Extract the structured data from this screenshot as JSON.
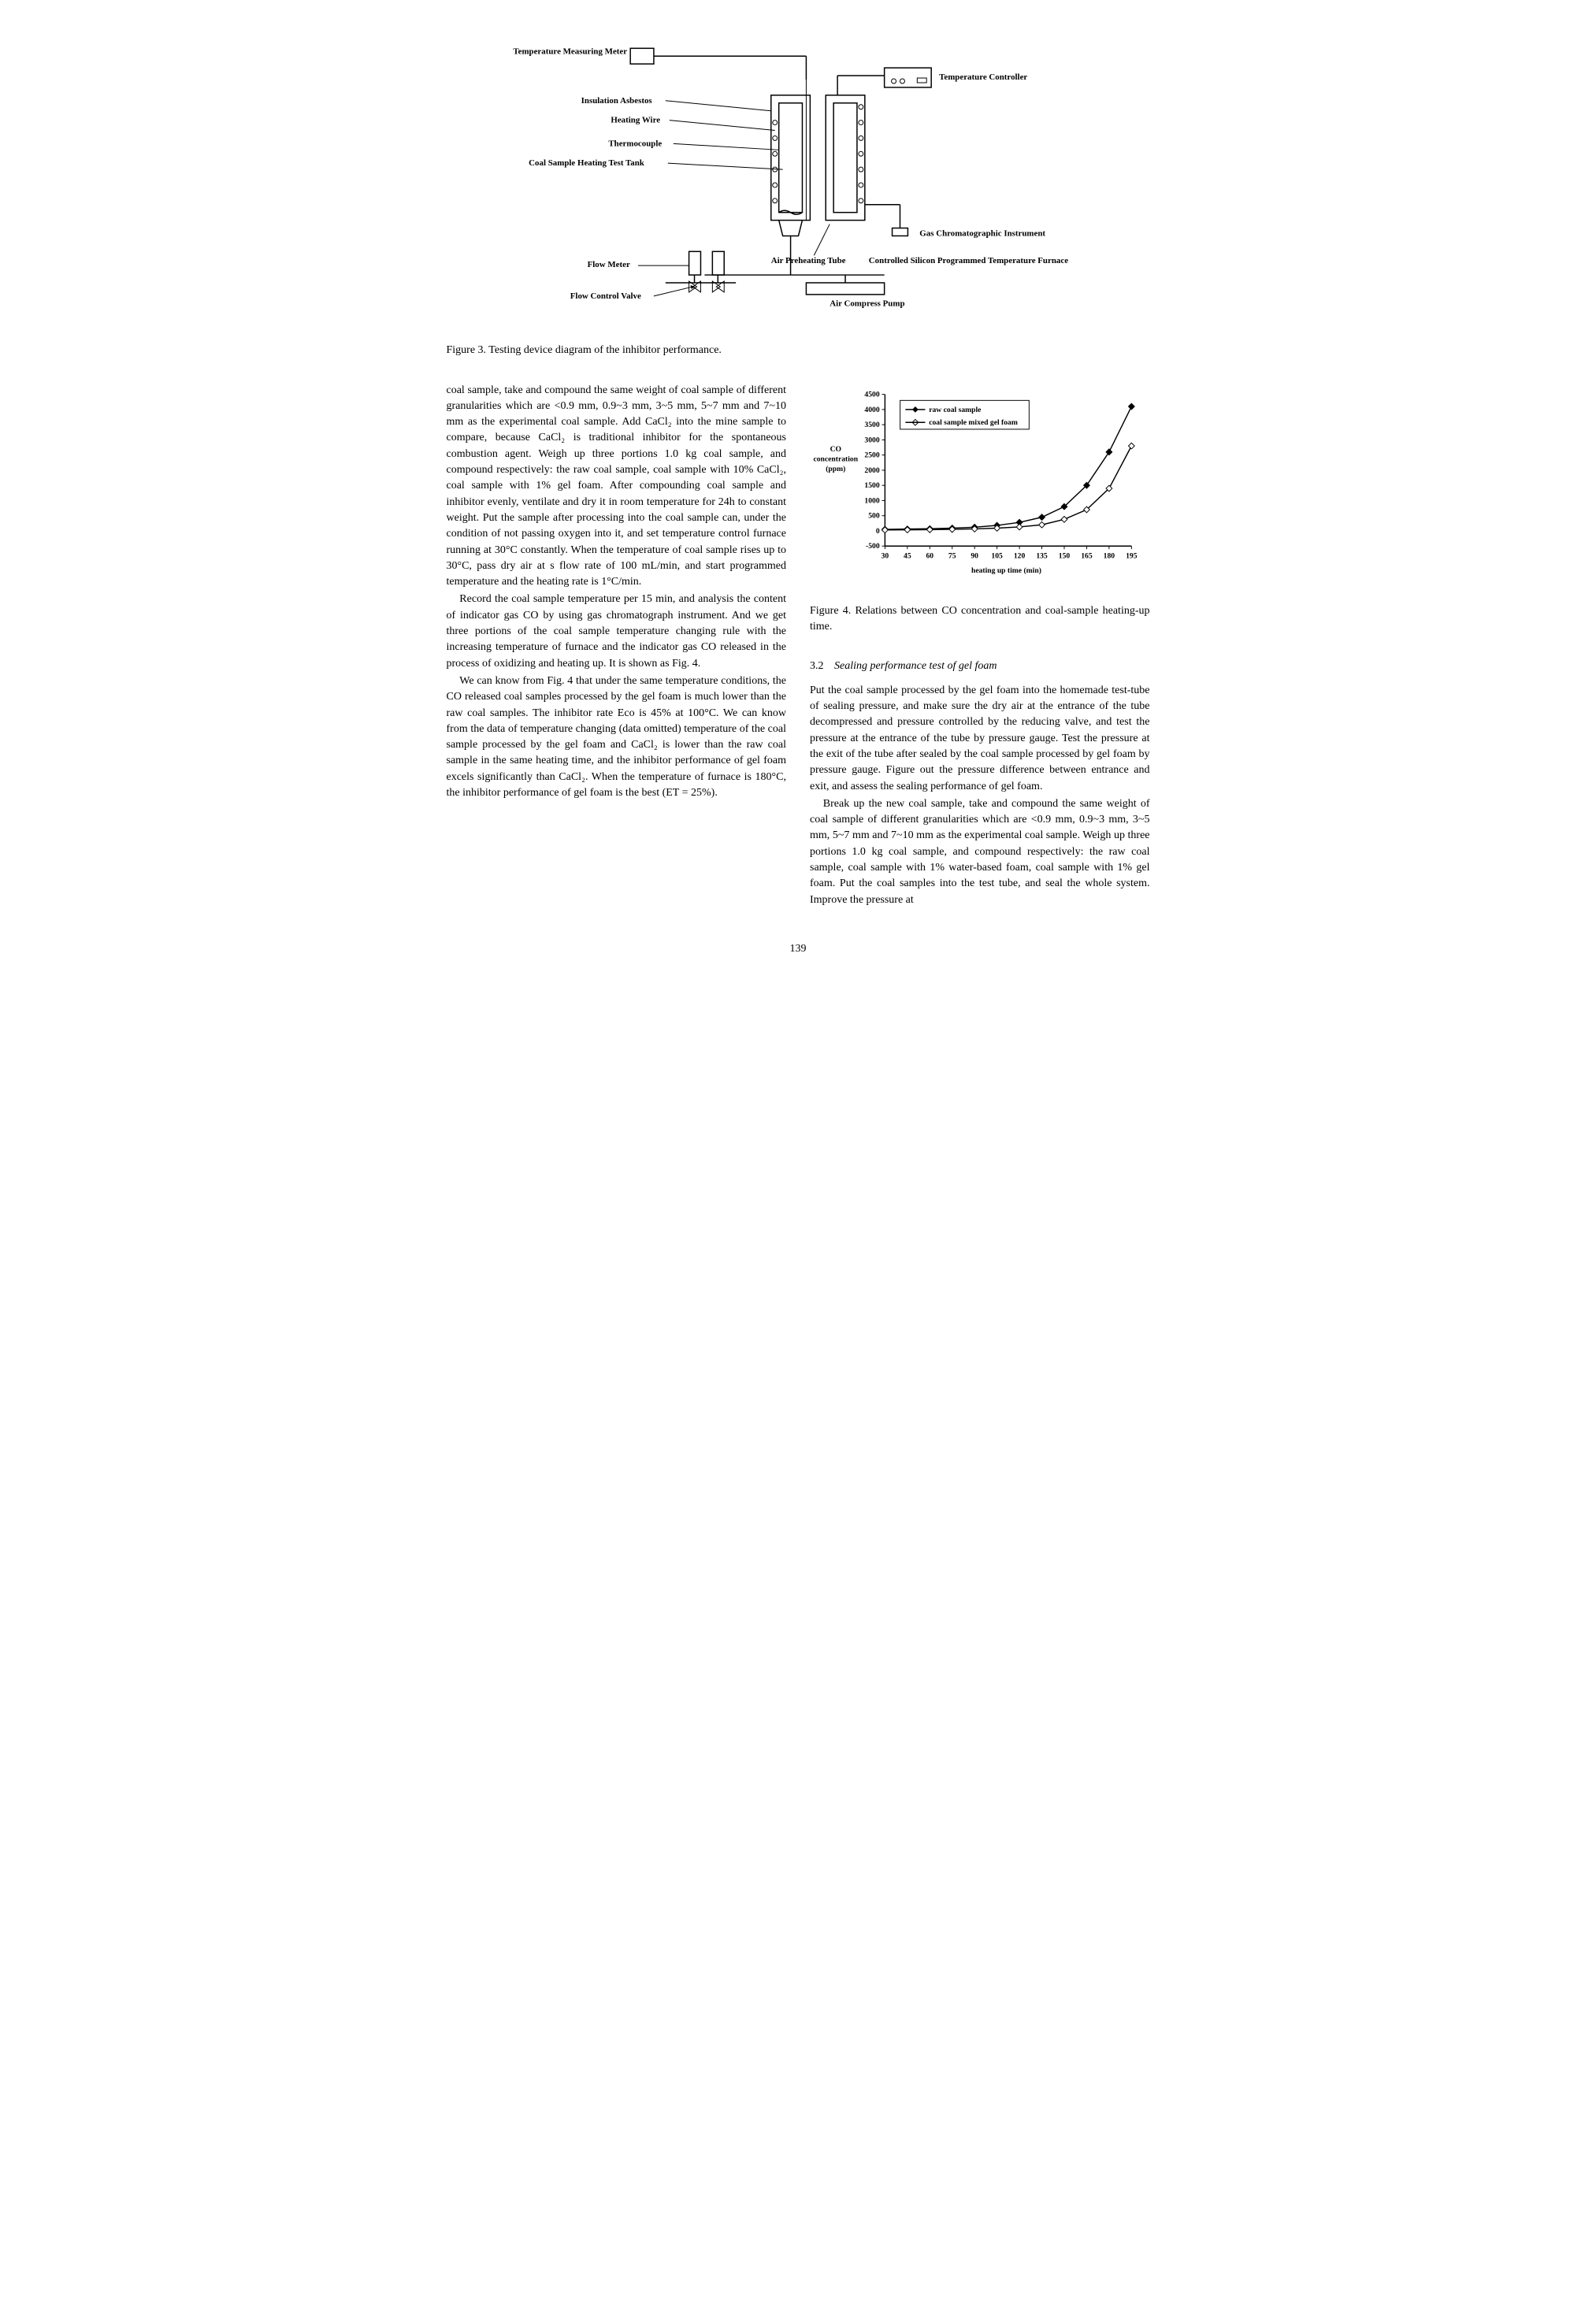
{
  "figure3": {
    "caption": "Figure 3.   Testing device diagram of the inhibitor performance.",
    "labels": {
      "tempMeasuring": "Temperature Measuring Meter",
      "tempController": "Temperature Controller",
      "insulationAsbestos": "Insulation Asbestos",
      "heatingWire": "Heating Wire",
      "thermocouple": "Thermocouple",
      "coalSampleTank": "Coal Sample Heating Test Tank",
      "gasInstrument": "Gas Chromatographic Instrument",
      "airPreheatTube": "Air Preheating Tube",
      "controlledFurnace": "Controlled Silicon Programmed Temperature Furnace",
      "flowMeter": "Flow Meter",
      "airCompressPump": "Air Compress Pump",
      "flowControlValve": "Flow Control Valve"
    }
  },
  "leftColumn": {
    "para1": "coal sample, take and compound the same weight of coal sample of different granularities which are <0.9 mm, 0.9~3 mm, 3~5 mm, 5~7 mm and 7~10 mm as the experimental coal sample. Add CaCl₂ into the mine sample to compare, because CaCl₂ is traditional inhibitor for the spontaneous combustion agent. Weigh up three portions 1.0 kg coal sample, and compound respectively: the raw coal sample, coal sample with 10% CaCl₂, coal sample with 1% gel foam. After compounding coal sample and inhibitor evenly, ventilate and dry it in room temperature for 24h to constant weight. Put the sample after processing into the coal sample can, under the condition of not passing oxygen into it, and set temperature control furnace running at 30°C constantly. When the temperature of coal sample rises up to 30°C, pass dry air at s flow rate of 100 mL/min, and start programmed temperature and the heating rate is 1°C/min.",
    "para2": "Record the coal sample temperature per 15 min, and analysis the content of indicator gas CO by using gas chromatograph instrument. And we get three portions of the coal sample temperature changing rule with the increasing temperature of furnace and the indicator gas CO released in the process of oxidizing and heating up. It is shown as Fig. 4.",
    "para3": "We can know from Fig. 4 that under the same temperature conditions, the CO released coal samples processed by the gel foam is much lower than the raw coal samples. The inhibitor rate Eco is 45% at 100°C. We can know from the data of temperature changing (data omitted) temperature of the coal sample processed by the gel foam and CaCl₂ is lower than the raw coal sample in the same heating time, and the inhibitor performance of gel foam excels significantly than CaCl₂. When the temperature of furnace is 180°C, the inhibitor performance of gel foam is the best (ET = 25%)."
  },
  "figure4": {
    "caption": "Figure 4.   Relations between CO concentration and coal-sample heating-up time.",
    "yLabel1": "CO",
    "yLabel2": "concentration",
    "yLabel3": "(ppm)",
    "xLabel": "heating up time (min)",
    "legend1": "raw coal sample",
    "legend2": "coal sample mixed gel foam",
    "yTicks": [
      -500,
      0,
      500,
      1000,
      1500,
      2000,
      2500,
      3000,
      3500,
      4000,
      4500
    ],
    "xTicks": [
      30,
      45,
      60,
      75,
      90,
      105,
      120,
      135,
      150,
      165,
      180,
      195
    ],
    "series1": {
      "x": [
        30,
        45,
        60,
        75,
        90,
        105,
        120,
        135,
        150,
        165,
        180,
        195
      ],
      "y": [
        50,
        60,
        70,
        90,
        120,
        180,
        280,
        450,
        800,
        1500,
        2600,
        4100
      ],
      "color": "#000000",
      "marker": "diamond"
    },
    "series2": {
      "x": [
        30,
        45,
        60,
        75,
        90,
        105,
        120,
        135,
        150,
        165,
        180,
        195
      ],
      "y": [
        30,
        35,
        40,
        50,
        65,
        90,
        130,
        200,
        380,
        700,
        1400,
        2800
      ],
      "color": "#000000",
      "marker": "diamond-open"
    },
    "ylim": [
      -500,
      4500
    ],
    "xlim": [
      30,
      195
    ],
    "backgroundColor": "#ffffff"
  },
  "section32": {
    "number": "3.2",
    "title": "Sealing performance test of gel foam"
  },
  "rightColumn": {
    "para1": "Put the coal sample processed by the gel foam into the homemade test-tube of sealing pressure, and make sure the dry air at the entrance of the tube decompressed and pressure controlled by the reducing valve, and test the pressure at the entrance of the tube by pressure gauge. Test the pressure at the exit of the tube after sealed by the coal sample processed by gel foam by pressure gauge. Figure out the pressure difference between entrance and exit, and assess the sealing performance of gel foam.",
    "para2": "Break up the new coal sample, take and compound the same weight of coal sample of different granularities which are <0.9 mm, 0.9~3 mm, 3~5 mm, 5~7 mm and 7~10 mm as the experimental coal sample. Weigh up three portions 1.0 kg coal sample, and compound respectively: the raw coal sample, coal sample with 1% water-based foam, coal sample with 1% gel foam. Put the coal samples into the test tube, and seal the whole system. Improve the pressure at"
  },
  "pageNumber": "139"
}
